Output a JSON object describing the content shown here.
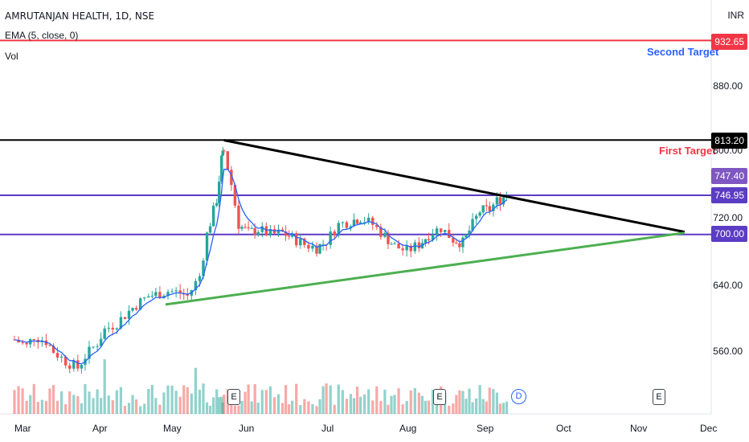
{
  "legend": {
    "symbol_line": "AMRUTANJAN HEALTH, 1D, NSE",
    "ema_line": "EMA (5, close, 0)",
    "volume_line": "Vol"
  },
  "currency": "INR",
  "annotations": {
    "second_target": "Second Target",
    "first_target": "First Target"
  },
  "price_tags": [
    {
      "label": "932.65",
      "color": "#f23645"
    },
    {
      "label": "813.20",
      "color": "#000000"
    },
    {
      "label": "747.40",
      "color": "#7e57c2"
    },
    {
      "label": "746.95",
      "color": "#5b3cc4"
    },
    {
      "label": "700.00",
      "color": "#5b3cc4"
    }
  ],
  "y_axis_labels": [
    "880.00",
    "800.00",
    "720.00",
    "640.00",
    "560.00"
  ],
  "x_axis_labels": [
    "Mar",
    "Apr",
    "May",
    "Jun",
    "Jul",
    "Aug",
    "Sep",
    "Oct",
    "Nov",
    "Dec"
  ],
  "events": {
    "earnings": [
      "E",
      "E",
      "E"
    ],
    "dividend": "D"
  },
  "colors": {
    "up": "#26a69a",
    "down": "#ef5350",
    "ema": "#2962ff",
    "level_purple": "#5b3cc4",
    "target_red": "#f23645",
    "resistance_black": "#000000",
    "support_green": "#4caf50"
  },
  "chart_data": {
    "type": "candlestick",
    "title": "AMRUTANJAN HEALTH, 1D, NSE",
    "ylim": [
      520,
      960
    ],
    "x_range_months": [
      "Mar",
      "Dec"
    ],
    "indicators": [
      "EMA (5, close, 0)",
      "Vol"
    ],
    "horizontal_levels": [
      {
        "price": 932.65,
        "color": "#f23645",
        "label": "Second Target"
      },
      {
        "price": 813.2,
        "color": "#000000",
        "label": "First Target"
      },
      {
        "price": 746.95,
        "color": "#5b3cc4"
      },
      {
        "price": 700.0,
        "color": "#5b3cc4"
      }
    ],
    "trendlines": [
      {
        "name": "resistance",
        "color": "#000000",
        "from": {
          "date": "2023-05-26",
          "price": 813
        },
        "to": {
          "date": "2023-12-01",
          "price": 703
        }
      },
      {
        "name": "support",
        "color": "#4caf50",
        "from": {
          "date": "2023-05-02",
          "price": 616
        },
        "to": {
          "date": "2023-12-01",
          "price": 702
        }
      }
    ],
    "last_close": 747.4,
    "closes": [
      {
        "date": "2023-03-01",
        "close": 574
      },
      {
        "date": "2023-03-06",
        "close": 566
      },
      {
        "date": "2023-03-09",
        "close": 578
      },
      {
        "date": "2023-03-14",
        "close": 572
      },
      {
        "date": "2023-03-17",
        "close": 560
      },
      {
        "date": "2023-03-22",
        "close": 548
      },
      {
        "date": "2023-03-27",
        "close": 540
      },
      {
        "date": "2023-03-30",
        "close": 554
      },
      {
        "date": "2023-04-04",
        "close": 570
      },
      {
        "date": "2023-04-07",
        "close": 586
      },
      {
        "date": "2023-04-12",
        "close": 594
      },
      {
        "date": "2023-04-17",
        "close": 608
      },
      {
        "date": "2023-04-20",
        "close": 616
      },
      {
        "date": "2023-04-25",
        "close": 626
      },
      {
        "date": "2023-04-28",
        "close": 628
      },
      {
        "date": "2023-05-03",
        "close": 632
      },
      {
        "date": "2023-05-08",
        "close": 630
      },
      {
        "date": "2023-05-11",
        "close": 626
      },
      {
        "date": "2023-05-16",
        "close": 650
      },
      {
        "date": "2023-05-19",
        "close": 700
      },
      {
        "date": "2023-05-23",
        "close": 742
      },
      {
        "date": "2023-05-25",
        "close": 790
      },
      {
        "date": "2023-05-26",
        "close": 800
      },
      {
        "date": "2023-05-29",
        "close": 760
      },
      {
        "date": "2023-06-01",
        "close": 712
      },
      {
        "date": "2023-06-05",
        "close": 702
      },
      {
        "date": "2023-06-09",
        "close": 706
      },
      {
        "date": "2023-06-14",
        "close": 700
      },
      {
        "date": "2023-06-19",
        "close": 702
      },
      {
        "date": "2023-06-23",
        "close": 696
      },
      {
        "date": "2023-06-28",
        "close": 688
      },
      {
        "date": "2023-07-03",
        "close": 684
      },
      {
        "date": "2023-07-07",
        "close": 692
      },
      {
        "date": "2023-07-12",
        "close": 712
      },
      {
        "date": "2023-07-17",
        "close": 716
      },
      {
        "date": "2023-07-21",
        "close": 720
      },
      {
        "date": "2023-07-26",
        "close": 712
      },
      {
        "date": "2023-07-31",
        "close": 698
      },
      {
        "date": "2023-08-04",
        "close": 686
      },
      {
        "date": "2023-08-09",
        "close": 680
      },
      {
        "date": "2023-08-14",
        "close": 688
      },
      {
        "date": "2023-08-18",
        "close": 700
      },
      {
        "date": "2023-08-23",
        "close": 708
      },
      {
        "date": "2023-08-28",
        "close": 694
      },
      {
        "date": "2023-09-01",
        "close": 690
      },
      {
        "date": "2023-09-05",
        "close": 712
      },
      {
        "date": "2023-09-08",
        "close": 728
      },
      {
        "date": "2023-09-12",
        "close": 730
      },
      {
        "date": "2023-09-15",
        "close": 740
      },
      {
        "date": "2023-09-19",
        "close": 747.4
      }
    ]
  }
}
